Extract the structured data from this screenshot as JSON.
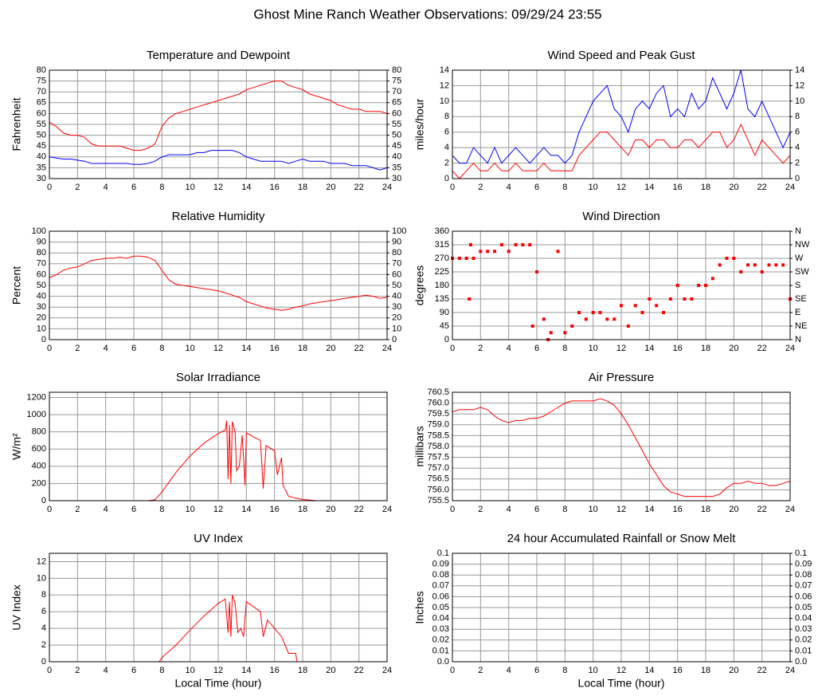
{
  "title": "Ghost Mine Ranch Weather Observations: 09/29/24 23:55",
  "chart_data": [
    {
      "type": "line",
      "title": "Temperature and Dewpoint",
      "ylabel": "Fahrenheit",
      "x": [
        0,
        0.5,
        1,
        1.5,
        2,
        2.5,
        3,
        3.5,
        4,
        4.5,
        5,
        5.5,
        6,
        6.5,
        7,
        7.5,
        8,
        8.5,
        9,
        9.5,
        10,
        10.5,
        11,
        11.5,
        12,
        12.5,
        13,
        13.5,
        14,
        14.5,
        15,
        15.5,
        16,
        16.5,
        17,
        17.5,
        18,
        18.5,
        19,
        19.5,
        20,
        20.5,
        21,
        21.5,
        22,
        22.5,
        23,
        23.5,
        24
      ],
      "series": [
        {
          "color": "#ff0000",
          "values": [
            56,
            54,
            51,
            50,
            50,
            49,
            46,
            45,
            45,
            45,
            45,
            44,
            43,
            43,
            44,
            46,
            54,
            58,
            60,
            61,
            62,
            63,
            64,
            65,
            66,
            67,
            68,
            69,
            71,
            72,
            73,
            74,
            75,
            75,
            73,
            72,
            71,
            69,
            68,
            67,
            66,
            64,
            63,
            62,
            62,
            61,
            61,
            61,
            60
          ]
        },
        {
          "color": "#0000ff",
          "values": [
            40,
            39.5,
            39,
            39,
            38.5,
            38,
            37,
            37,
            37,
            37,
            37,
            37,
            36.5,
            36.5,
            37,
            38,
            40,
            41,
            41,
            41,
            41,
            42,
            42,
            43,
            43,
            43,
            43,
            42,
            40,
            39,
            38,
            38,
            38,
            38,
            37,
            38,
            39,
            38,
            38,
            38,
            37,
            37,
            37,
            36,
            36,
            36,
            35,
            34,
            35
          ]
        }
      ],
      "xlim": [
        0,
        24
      ],
      "xticks": [
        0,
        2,
        4,
        6,
        8,
        10,
        12,
        14,
        16,
        18,
        20,
        22,
        24
      ],
      "ylim": [
        30,
        80
      ],
      "yticks": [
        30,
        35,
        40,
        45,
        50,
        55,
        60,
        65,
        70,
        75,
        80
      ],
      "y2lim": [
        30,
        80
      ],
      "y2ticks": [
        30,
        35,
        40,
        45,
        50,
        55,
        60,
        65,
        70,
        75,
        80
      ],
      "grid": true
    },
    {
      "type": "line",
      "title": "Wind Speed and Peak Gust",
      "ylabel": "miles/hour",
      "x": [
        0,
        0.5,
        1,
        1.5,
        2,
        2.5,
        3,
        3.5,
        4,
        4.5,
        5,
        5.5,
        6,
        6.5,
        7,
        7.5,
        8,
        8.5,
        9,
        9.5,
        10,
        10.5,
        11,
        11.5,
        12,
        12.5,
        13,
        13.5,
        14,
        14.5,
        15,
        15.5,
        16,
        16.5,
        17,
        17.5,
        18,
        18.5,
        19,
        19.5,
        20,
        20.5,
        21,
        21.5,
        22,
        22.5,
        23,
        23.5,
        24
      ],
      "series": [
        {
          "color": "#0000ff",
          "values": [
            3,
            2,
            2,
            4,
            3,
            2,
            4,
            2,
            3,
            4,
            3,
            2,
            3,
            4,
            3,
            3,
            2,
            3,
            6,
            8,
            10,
            11,
            12,
            9,
            8,
            6,
            9,
            10,
            9,
            11,
            12,
            8,
            9,
            8,
            11,
            9,
            10,
            13,
            11,
            9,
            11,
            14,
            9,
            8,
            10,
            8,
            6,
            4,
            6
          ]
        },
        {
          "color": "#ff0000",
          "values": [
            1,
            0,
            1,
            2,
            1,
            1,
            2,
            1,
            1,
            2,
            1,
            1,
            1,
            2,
            1,
            1,
            1,
            1,
            3,
            4,
            5,
            6,
            6,
            5,
            4,
            3,
            5,
            5,
            4,
            5,
            5,
            4,
            4,
            5,
            5,
            4,
            5,
            6,
            6,
            4,
            5,
            7,
            5,
            3,
            5,
            4,
            3,
            2,
            3
          ]
        }
      ],
      "xlim": [
        0,
        24
      ],
      "xticks": [
        0,
        2,
        4,
        6,
        8,
        10,
        12,
        14,
        16,
        18,
        20,
        22,
        24
      ],
      "ylim": [
        0,
        14
      ],
      "yticks": [
        0,
        2,
        4,
        6,
        8,
        10,
        12,
        14
      ],
      "y2lim": [
        0,
        14
      ],
      "y2ticks": [
        0,
        2,
        4,
        6,
        8,
        10,
        12,
        14
      ],
      "grid": true
    },
    {
      "type": "line",
      "title": "Relative Humidity",
      "ylabel": "Percent",
      "x": [
        0,
        0.5,
        1,
        1.5,
        2,
        2.5,
        3,
        3.5,
        4,
        4.5,
        5,
        5.5,
        6,
        6.5,
        7,
        7.5,
        8,
        8.5,
        9,
        9.5,
        10,
        10.5,
        11,
        11.5,
        12,
        12.5,
        13,
        13.5,
        14,
        14.5,
        15,
        15.5,
        16,
        16.5,
        17,
        17.5,
        18,
        18.5,
        19,
        19.5,
        20,
        20.5,
        21,
        21.5,
        22,
        22.5,
        23,
        23.5,
        24
      ],
      "series": [
        {
          "color": "#ff0000",
          "values": [
            57,
            60,
            64,
            66,
            67,
            70,
            73,
            74,
            75,
            75,
            76,
            75,
            77,
            77,
            76,
            73,
            64,
            55,
            51,
            50,
            49,
            48,
            47,
            46,
            45,
            43,
            41,
            39,
            35,
            33,
            31,
            29,
            28,
            27,
            28,
            30,
            31,
            33,
            34,
            35,
            36,
            37,
            38,
            39,
            40,
            41,
            40,
            38,
            39
          ]
        }
      ],
      "xlim": [
        0,
        24
      ],
      "xticks": [
        0,
        2,
        4,
        6,
        8,
        10,
        12,
        14,
        16,
        18,
        20,
        22,
        24
      ],
      "ylim": [
        0,
        100
      ],
      "yticks": [
        0,
        10,
        20,
        30,
        40,
        50,
        60,
        70,
        80,
        90,
        100
      ],
      "y2lim": [
        0,
        100
      ],
      "y2ticks": [
        0,
        10,
        20,
        30,
        40,
        50,
        60,
        70,
        80,
        90,
        100
      ],
      "grid": true
    },
    {
      "type": "scatter",
      "title": "Wind Direction",
      "ylabel": "degrees",
      "x": [
        0,
        0.5,
        1,
        1.2,
        1.3,
        1.5,
        2,
        2.5,
        3,
        3.5,
        4,
        4.5,
        5,
        5.5,
        5.7,
        6,
        6.5,
        6.8,
        7,
        7.5,
        8,
        8.5,
        9,
        9.5,
        10,
        10.5,
        11,
        11.5,
        12,
        12.5,
        13,
        13.5,
        14,
        14.5,
        15,
        15.5,
        16,
        16.5,
        17,
        17.5,
        18,
        18.5,
        19,
        19.5,
        20,
        20.5,
        21,
        21.5,
        22,
        22.5,
        23,
        23.5,
        24
      ],
      "series": [
        {
          "color": "#ff0000",
          "values": [
            270,
            270,
            270,
            135,
            315,
            270,
            293,
            293,
            293,
            315,
            293,
            315,
            315,
            315,
            45,
            225,
            68,
            0,
            23,
            293,
            23,
            45,
            90,
            68,
            90,
            90,
            68,
            68,
            113,
            45,
            113,
            90,
            135,
            113,
            90,
            135,
            180,
            135,
            135,
            180,
            180,
            203,
            248,
            270,
            270,
            225,
            248,
            248,
            225,
            248,
            248,
            248,
            135
          ]
        }
      ],
      "xlim": [
        0,
        24
      ],
      "xticks": [
        0,
        2,
        4,
        6,
        8,
        10,
        12,
        14,
        16,
        18,
        20,
        22,
        24
      ],
      "ylim": [
        0,
        360
      ],
      "yticks": [
        0,
        45,
        90,
        135,
        180,
        225,
        270,
        315,
        360
      ],
      "y2lim": [
        0,
        360
      ],
      "y2ticks": [
        {
          "value": 0,
          "label": "N"
        },
        {
          "value": 45,
          "label": "NE"
        },
        {
          "value": 90,
          "label": "E"
        },
        {
          "value": 135,
          "label": "SE"
        },
        {
          "value": 180,
          "label": "S"
        },
        {
          "value": 225,
          "label": "SW"
        },
        {
          "value": 270,
          "label": "W"
        },
        {
          "value": 315,
          "label": "NW"
        },
        {
          "value": 360,
          "label": "N"
        }
      ],
      "grid": true
    },
    {
      "type": "line",
      "title": "Solar Irradiance",
      "ylabel": "W/m²",
      "x": [
        0,
        7,
        7.5,
        8,
        9,
        10,
        11,
        12,
        12.5,
        12.6,
        12.7,
        12.8,
        12.9,
        13,
        13.2,
        13.3,
        13.5,
        13.7,
        13.8,
        13.9,
        14,
        14.5,
        15,
        15.2,
        15.4,
        16,
        16.2,
        16.5,
        16.6,
        16.7,
        17,
        17.5,
        18,
        19,
        24
      ],
      "series": [
        {
          "color": "#ff0000",
          "values": [
            0,
            0,
            10,
            100,
            330,
            520,
            670,
            780,
            820,
            930,
            250,
            880,
            200,
            920,
            800,
            350,
            400,
            760,
            500,
            180,
            790,
            740,
            700,
            140,
            640,
            580,
            300,
            500,
            180,
            150,
            50,
            30,
            15,
            0,
            0
          ]
        }
      ],
      "xlim": [
        0,
        24
      ],
      "xticks": [
        0,
        2,
        4,
        6,
        8,
        10,
        12,
        14,
        16,
        18,
        20,
        22,
        24
      ],
      "ylim": [
        0,
        1260
      ],
      "yticks": [
        0,
        200,
        400,
        600,
        800,
        1000,
        1200
      ],
      "grid": true
    },
    {
      "type": "line",
      "title": "Air Pressure",
      "ylabel": "millibars",
      "x": [
        0,
        0.5,
        1,
        1.5,
        2,
        2.5,
        3,
        3.5,
        4,
        4.5,
        5,
        5.5,
        6,
        6.5,
        7,
        7.5,
        8,
        8.5,
        9,
        9.5,
        10,
        10.5,
        11,
        11.5,
        12,
        12.5,
        13,
        13.5,
        14,
        14.5,
        15,
        15.5,
        16,
        16.5,
        17,
        17.5,
        18,
        18.5,
        19,
        19.5,
        20,
        20.5,
        21,
        21.5,
        22,
        22.5,
        23,
        23.5,
        24
      ],
      "series": [
        {
          "color": "#ff0000",
          "values": [
            759.6,
            759.7,
            759.7,
            759.7,
            759.8,
            759.7,
            759.4,
            759.2,
            759.1,
            759.2,
            759.2,
            759.3,
            759.3,
            759.4,
            759.6,
            759.8,
            760.0,
            760.1,
            760.1,
            760.1,
            760.1,
            760.2,
            760.1,
            759.9,
            759.5,
            759.0,
            758.4,
            757.8,
            757.2,
            756.7,
            756.2,
            755.9,
            755.8,
            755.7,
            755.7,
            755.7,
            755.7,
            755.7,
            755.8,
            756.1,
            756.3,
            756.3,
            756.4,
            756.3,
            756.3,
            756.2,
            756.2,
            756.3,
            756.4
          ]
        }
      ],
      "xlim": [
        0,
        24
      ],
      "xticks": [
        0,
        2,
        4,
        6,
        8,
        10,
        12,
        14,
        16,
        18,
        20,
        22,
        24
      ],
      "ylim": [
        755.5,
        760.5
      ],
      "yticks": [
        755.5,
        {
          "value": 756,
          "label": "756.0"
        },
        756.5,
        {
          "value": 757,
          "label": "757.0"
        },
        757.5,
        {
          "value": 758,
          "label": "758.0"
        },
        758.5,
        {
          "value": 759,
          "label": "759.0"
        },
        759.5,
        {
          "value": 760,
          "label": "760.0"
        },
        760.5
      ],
      "grid": true
    },
    {
      "type": "line",
      "title": "UV Index",
      "ylabel": "UV Index",
      "xlabel": "Local Time (hour)",
      "x": [
        0,
        7.8,
        8,
        9,
        10,
        11,
        12,
        12.5,
        12.7,
        12.8,
        12.9,
        13,
        13.2,
        13.4,
        13.6,
        13.8,
        14,
        15,
        15.2,
        15.5,
        16,
        16.5,
        17,
        17.5,
        17.6,
        24
      ],
      "series": [
        {
          "color": "#ff0000",
          "values": [
            0,
            0,
            0.5,
            2,
            3.8,
            5.5,
            7,
            7.5,
            3.5,
            7.2,
            3,
            8,
            7,
            3.5,
            4,
            3,
            7.2,
            6,
            3,
            5,
            4,
            3,
            1,
            1,
            0,
            0
          ]
        }
      ],
      "xlim": [
        0,
        24
      ],
      "xticks": [
        0,
        2,
        4,
        6,
        8,
        10,
        12,
        14,
        16,
        18,
        20,
        22,
        24
      ],
      "ylim": [
        0,
        13
      ],
      "yticks": [
        0,
        2,
        4,
        6,
        8,
        10,
        12
      ],
      "grid": true
    },
    {
      "type": "line",
      "title": "24 hour Accumulated Rainfall or Snow Melt",
      "ylabel": "Inches",
      "xlabel": "Local Time (hour)",
      "x": [
        0,
        24
      ],
      "series": [
        {
          "color": "#ff0000",
          "values": [
            0,
            0
          ]
        }
      ],
      "xlim": [
        0,
        24
      ],
      "xticks": [
        0,
        2,
        4,
        6,
        8,
        10,
        12,
        14,
        16,
        18,
        20,
        22,
        24
      ],
      "ylim": [
        0,
        0.1
      ],
      "yticks": [
        {
          "value": 0,
          "label": "0.0"
        },
        0.01,
        0.02,
        0.03,
        0.04,
        0.05,
        0.06,
        0.07,
        0.08,
        0.09,
        0.1
      ],
      "y2lim": [
        0,
        0.1
      ],
      "y2ticks": [
        {
          "value": 0,
          "label": "0.0"
        },
        0.01,
        0.02,
        0.03,
        0.04,
        0.05,
        0.06,
        0.07,
        0.08,
        0.09,
        0.1
      ],
      "grid": true
    }
  ]
}
